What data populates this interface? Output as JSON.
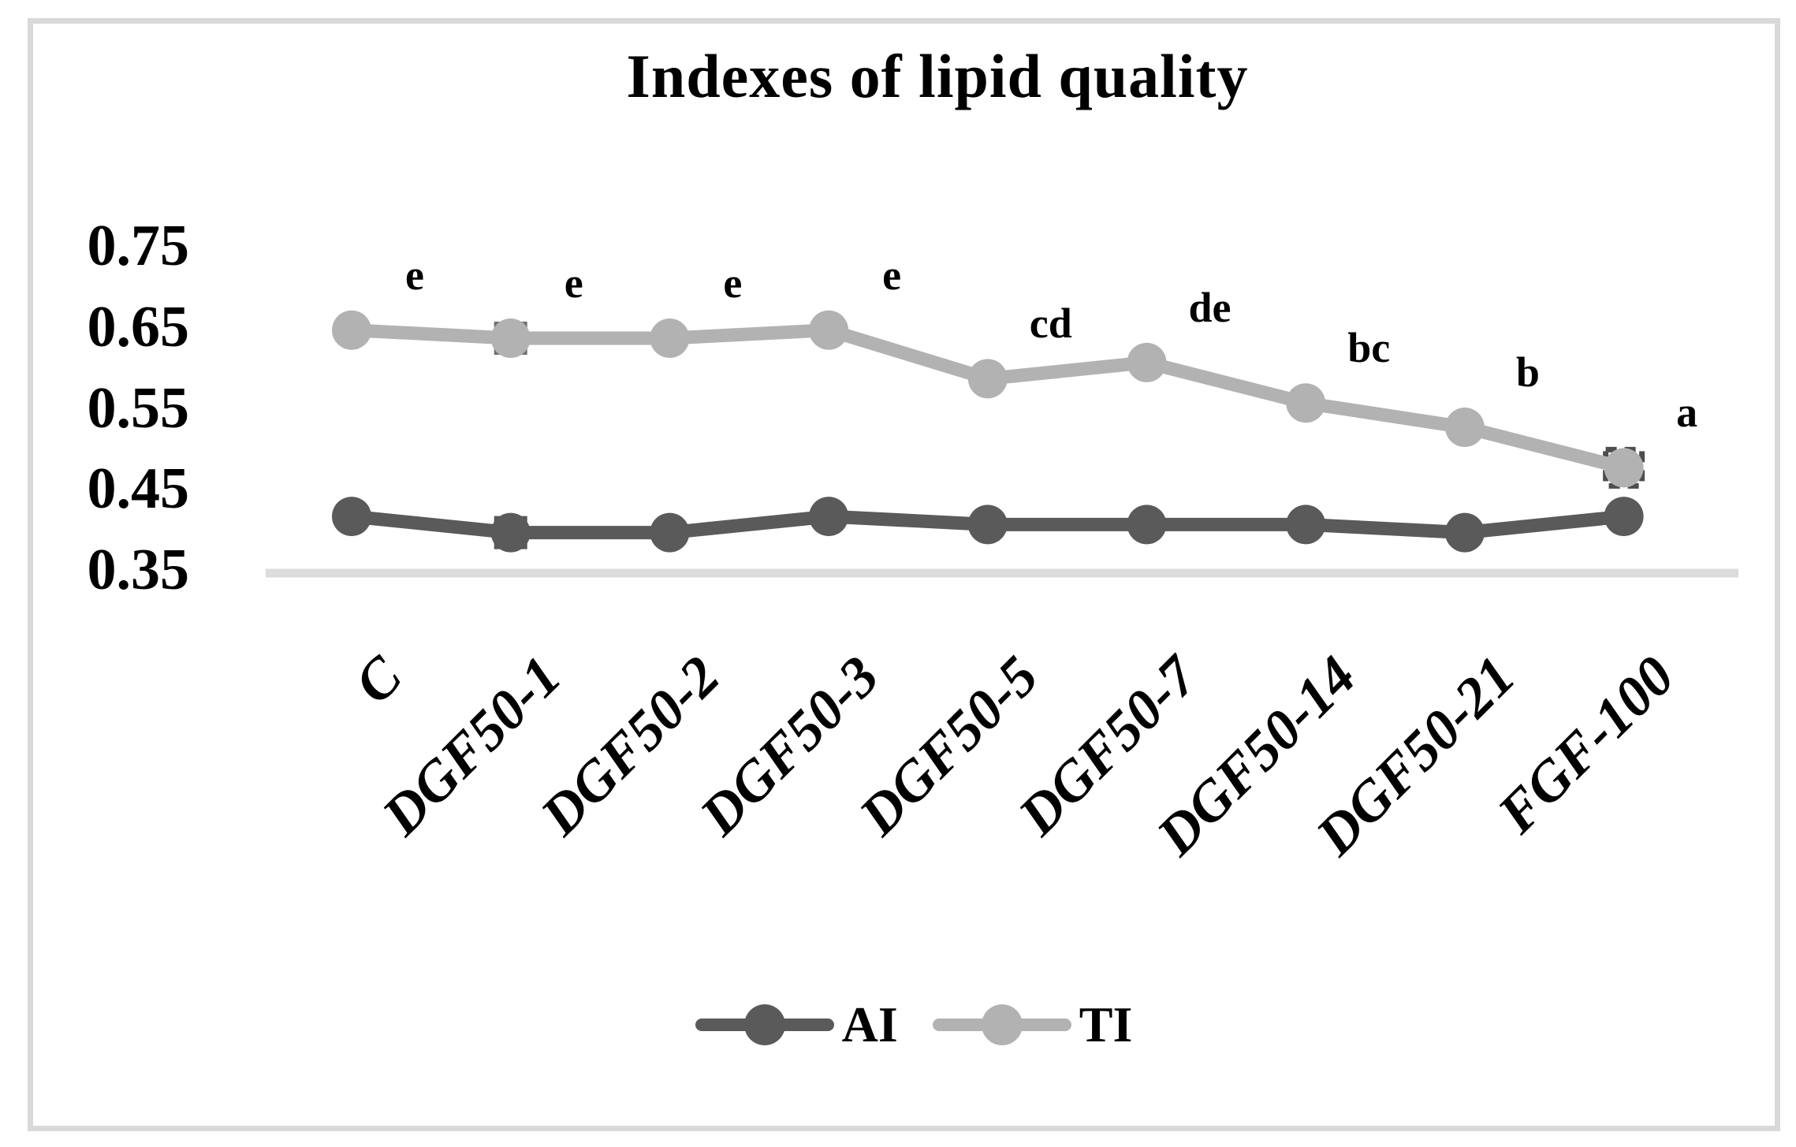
{
  "chart_data": {
    "type": "line",
    "title": "Indexes of lipid quality",
    "categories": [
      "C",
      "DGF50-1",
      "DGF50-2",
      "DGF50-3",
      "DGF50-5",
      "DGF50-7",
      "DGF50-14",
      "DGF50-21",
      "FGF-100"
    ],
    "series": [
      {
        "name": "AI",
        "color": "#5a5a5a",
        "values": [
          0.42,
          0.4,
          0.4,
          0.42,
          0.41,
          0.41,
          0.41,
          0.4,
          0.42
        ]
      },
      {
        "name": "TI",
        "color": "#b2b2b2",
        "values": [
          0.65,
          0.64,
          0.64,
          0.65,
          0.59,
          0.61,
          0.56,
          0.53,
          0.48
        ],
        "point_labels": [
          "e",
          "e",
          "e",
          "e",
          "cd",
          "de",
          "bc",
          "b",
          "a"
        ]
      }
    ],
    "y_ticks": [
      0.75,
      0.65,
      0.55,
      0.45,
      0.35
    ],
    "y_tick_labels": [
      "0.75",
      "0.65",
      "0.55",
      "0.45",
      "0.35"
    ],
    "ylim": [
      0.35,
      0.79
    ],
    "xlabel": "",
    "ylabel": "",
    "grid": "single horizontal baseline at 0.35",
    "legend_position": "bottom",
    "x_tick_rotation_deg": 45,
    "marker_highlights": [
      {
        "series": "TI",
        "category": "DGF50-1",
        "style": "solid-square",
        "color": "#6f6f6f"
      },
      {
        "series": "AI",
        "category": "DGF50-1",
        "style": "solid-square",
        "color": "#575757"
      },
      {
        "series": "TI",
        "category": "FGF-100",
        "style": "dashed-square",
        "color": "#4d4d4d"
      }
    ]
  },
  "legend": {
    "items": [
      {
        "label": "AI",
        "color": "#5a5a5a"
      },
      {
        "label": "TI",
        "color": "#b2b2b2"
      }
    ]
  },
  "colors": {
    "background": "#ffffff",
    "frame_border": "#d9d9d9",
    "baseline": "#dcdcdc",
    "text": "#000000"
  }
}
